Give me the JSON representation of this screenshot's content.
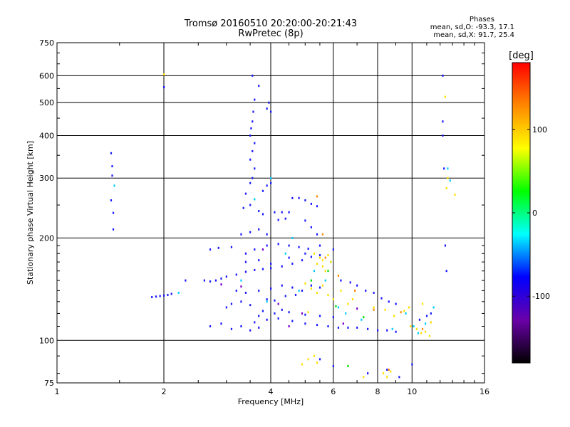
{
  "header": {
    "title_line1": "Tromsø 20160510 20:20:00-20:21:43",
    "title_line2": "RwPretec (8p)",
    "phases_label": "Phases",
    "phase_o": "mean, sd,O: -93.3, 17.1",
    "phase_x": "mean, sd,X:  91.7, 25.4"
  },
  "chart_data": {
    "type": "scatter",
    "xlabel": "Frequency [MHz]",
    "ylabel": "Stationary phase Virtual Height [km]",
    "x_scale": "log",
    "y_scale": "log",
    "xlim": [
      1,
      16
    ],
    "ylim": [
      75,
      750
    ],
    "x_ticks": [
      1,
      2,
      4,
      6,
      8,
      10,
      16
    ],
    "y_ticks": [
      75,
      100,
      200,
      300,
      400,
      500,
      600,
      750
    ],
    "grid": true,
    "colorbar": {
      "label": "[deg]",
      "ticks": [
        100,
        0,
        -100
      ],
      "range": [
        -180,
        180
      ],
      "colors": [
        "#000000",
        "#6a00a8",
        "#0000ff",
        "#00ffff",
        "#00ff00",
        "#ffff00",
        "#ff8800",
        "#ff0000"
      ]
    },
    "series": [
      {
        "color": "#1a1aff",
        "points": [
          [
            1.42,
            355
          ],
          [
            1.43,
            325
          ],
          [
            1.43,
            305
          ],
          [
            1.42,
            258
          ],
          [
            1.44,
            237
          ],
          [
            1.44,
            212
          ],
          [
            1.85,
            134
          ],
          [
            1.9,
            134.5
          ],
          [
            1.95,
            135
          ],
          [
            2.0,
            135.5
          ],
          [
            2.05,
            136
          ],
          [
            2.1,
            137
          ],
          [
            2.0,
            555
          ],
          [
            2.3,
            150
          ],
          [
            2.6,
            150
          ],
          [
            2.7,
            149
          ],
          [
            2.8,
            150
          ],
          [
            2.9,
            152
          ],
          [
            3.0,
            154
          ],
          [
            3.2,
            156
          ],
          [
            3.4,
            159
          ],
          [
            3.6,
            161
          ],
          [
            3.8,
            162
          ],
          [
            4.0,
            163
          ],
          [
            4.3,
            165
          ],
          [
            4.6,
            168
          ],
          [
            4.9,
            172
          ],
          [
            5.2,
            176
          ],
          [
            5.5,
            178
          ],
          [
            2.7,
            185
          ],
          [
            2.85,
            187
          ],
          [
            3.1,
            188
          ],
          [
            3.3,
            205
          ],
          [
            3.5,
            208
          ],
          [
            3.7,
            212
          ],
          [
            3.9,
            205
          ],
          [
            3.35,
            245
          ],
          [
            3.5,
            250
          ],
          [
            3.7,
            240
          ],
          [
            3.4,
            270
          ],
          [
            3.5,
            290
          ],
          [
            3.55,
            300
          ],
          [
            3.6,
            320
          ],
          [
            3.5,
            340
          ],
          [
            3.55,
            360
          ],
          [
            3.6,
            380
          ],
          [
            3.5,
            400
          ],
          [
            3.52,
            420
          ],
          [
            3.55,
            440
          ],
          [
            3.57,
            470
          ],
          [
            3.6,
            510
          ],
          [
            3.55,
            600
          ],
          [
            3.7,
            560
          ],
          [
            3.9,
            480
          ],
          [
            3.95,
            500
          ],
          [
            4.0,
            470
          ],
          [
            3.8,
            275
          ],
          [
            3.9,
            285
          ],
          [
            4.0,
            290
          ],
          [
            3.8,
            235
          ],
          [
            4.1,
            238
          ],
          [
            4.3,
            238
          ],
          [
            4.5,
            238
          ],
          [
            4.2,
            226
          ],
          [
            4.4,
            228
          ],
          [
            4.6,
            262
          ],
          [
            4.8,
            262
          ],
          [
            5.0,
            258
          ],
          [
            5.2,
            252
          ],
          [
            5.4,
            248
          ],
          [
            5.0,
            225
          ],
          [
            5.2,
            215
          ],
          [
            5.4,
            205
          ],
          [
            3.4,
            180
          ],
          [
            3.6,
            185
          ],
          [
            3.9,
            190
          ],
          [
            4.2,
            192
          ],
          [
            4.5,
            190
          ],
          [
            4.8,
            188
          ],
          [
            5.1,
            186
          ],
          [
            3.6,
            113
          ],
          [
            3.9,
            115
          ],
          [
            4.2,
            116
          ],
          [
            4.6,
            114
          ],
          [
            5.0,
            112
          ],
          [
            5.4,
            111
          ],
          [
            5.8,
            110
          ],
          [
            6.2,
            109
          ],
          [
            6.6,
            109
          ],
          [
            7.0,
            109
          ],
          [
            7.5,
            108
          ],
          [
            8.0,
            107
          ],
          [
            8.5,
            107
          ],
          [
            9.0,
            106
          ],
          [
            3.7,
            118
          ],
          [
            4.1,
            120
          ],
          [
            4.5,
            121
          ],
          [
            5.0,
            119
          ],
          [
            5.5,
            118
          ],
          [
            6.0,
            117
          ],
          [
            3.8,
            122
          ],
          [
            4.3,
            123
          ],
          [
            3.0,
            125
          ],
          [
            3.1,
            128
          ],
          [
            3.3,
            130
          ],
          [
            3.5,
            127
          ],
          [
            3.9,
            132
          ],
          [
            4.1,
            131
          ],
          [
            4.4,
            135
          ],
          [
            4.7,
            136
          ],
          [
            3.2,
            140
          ],
          [
            3.4,
            138
          ],
          [
            3.7,
            140
          ],
          [
            4.0,
            142
          ],
          [
            4.3,
            145
          ],
          [
            4.6,
            143
          ],
          [
            4.9,
            140
          ],
          [
            5.2,
            145
          ],
          [
            5.5,
            143
          ],
          [
            2.7,
            110
          ],
          [
            2.9,
            112
          ],
          [
            3.1,
            108
          ],
          [
            3.3,
            110
          ],
          [
            3.5,
            107
          ],
          [
            3.7,
            109
          ],
          [
            3.4,
            170
          ],
          [
            3.7,
            172
          ],
          [
            4.0,
            168
          ],
          [
            4.5,
            175
          ],
          [
            5.0,
            180
          ],
          [
            5.5,
            190
          ],
          [
            6.0,
            185
          ],
          [
            6.3,
            150
          ],
          [
            6.7,
            148
          ],
          [
            7.0,
            145
          ],
          [
            7.4,
            140
          ],
          [
            7.8,
            138
          ],
          [
            8.2,
            133
          ],
          [
            8.6,
            130
          ],
          [
            9.0,
            128
          ],
          [
            10.5,
            115
          ],
          [
            11.0,
            118
          ],
          [
            11.3,
            120
          ],
          [
            12.2,
            600
          ],
          [
            12.2,
            440
          ],
          [
            12.2,
            400
          ],
          [
            12.3,
            320
          ],
          [
            12.4,
            190
          ],
          [
            12.5,
            160
          ],
          [
            10.0,
            85
          ],
          [
            9.2,
            78
          ],
          [
            8.5,
            82
          ],
          [
            7.5,
            80
          ],
          [
            6.0,
            84
          ],
          [
            5.5,
            88
          ]
        ]
      },
      {
        "color": "#00ccff",
        "points": [
          [
            1.45,
            285
          ],
          [
            2.2,
            138
          ],
          [
            3.3,
            150
          ],
          [
            3.6,
            260
          ],
          [
            4.0,
            300
          ],
          [
            4.4,
            180
          ],
          [
            4.8,
            140
          ],
          [
            5.3,
            160
          ],
          [
            5.7,
            150
          ],
          [
            6.5,
            120
          ],
          [
            7.2,
            115
          ],
          [
            8.8,
            108
          ],
          [
            10.4,
            105
          ],
          [
            10.9,
            112
          ],
          [
            11.5,
            125
          ],
          [
            12.6,
            320
          ],
          [
            3.9,
            130
          ],
          [
            4.6,
            200
          ],
          [
            5.9,
            170
          ],
          [
            6.2,
            125
          ],
          [
            9.6,
            120
          ],
          [
            10.1,
            110
          ],
          [
            12.8,
            295
          ]
        ]
      },
      {
        "color": "#ffe000",
        "points": [
          [
            2.0,
            605
          ],
          [
            5.3,
            180
          ],
          [
            5.5,
            175
          ],
          [
            5.6,
            172
          ],
          [
            5.8,
            178
          ],
          [
            5.4,
            168
          ],
          [
            5.6,
            165
          ],
          [
            5.9,
            170
          ],
          [
            5.7,
            160
          ],
          [
            5.0,
            147
          ],
          [
            5.2,
            142
          ],
          [
            5.4,
            138
          ],
          [
            5.6,
            145
          ],
          [
            5.8,
            136
          ],
          [
            6.0,
            132
          ],
          [
            6.3,
            140
          ],
          [
            6.6,
            128
          ],
          [
            5.1,
            88
          ],
          [
            5.3,
            90
          ],
          [
            4.9,
            85
          ],
          [
            5.4,
            86
          ],
          [
            8.3,
            80
          ],
          [
            8.5,
            78
          ],
          [
            8.7,
            81
          ],
          [
            7.3,
            78
          ],
          [
            10.6,
            105
          ],
          [
            10.9,
            106
          ],
          [
            11.2,
            103
          ],
          [
            10.3,
            108
          ],
          [
            9.9,
            110
          ],
          [
            11.3,
            113
          ],
          [
            9.5,
            122
          ],
          [
            9.8,
            125
          ],
          [
            10.7,
            128
          ],
          [
            12.4,
            520
          ],
          [
            12.5,
            280
          ],
          [
            12.6,
            300
          ],
          [
            13.2,
            268
          ],
          [
            8.4,
            123
          ],
          [
            8.9,
            118
          ],
          [
            7.8,
            125
          ],
          [
            6.8,
            132
          ],
          [
            5.1,
            121
          ]
        ]
      },
      {
        "color": "#ff8800",
        "points": [
          [
            5.4,
            265
          ],
          [
            5.6,
            205
          ],
          [
            5.7,
            175
          ],
          [
            6.2,
            155
          ],
          [
            6.9,
            140
          ],
          [
            7.8,
            123
          ],
          [
            8.6,
            82
          ],
          [
            9.3,
            121
          ],
          [
            10.7,
            108
          ]
        ]
      },
      {
        "color": "#00dd00",
        "points": [
          [
            5.8,
            160
          ],
          [
            6.1,
            126
          ],
          [
            6.6,
            84
          ],
          [
            7.3,
            117
          ],
          [
            5.2,
            150
          ]
        ]
      },
      {
        "color": "#7700cc",
        "points": [
          [
            2.9,
            146
          ],
          [
            3.3,
            144
          ],
          [
            4.2,
            128
          ],
          [
            4.9,
            120
          ],
          [
            6.4,
            112
          ],
          [
            7.0,
            124
          ],
          [
            3.8,
            185
          ],
          [
            4.5,
            110
          ]
        ]
      }
    ]
  }
}
